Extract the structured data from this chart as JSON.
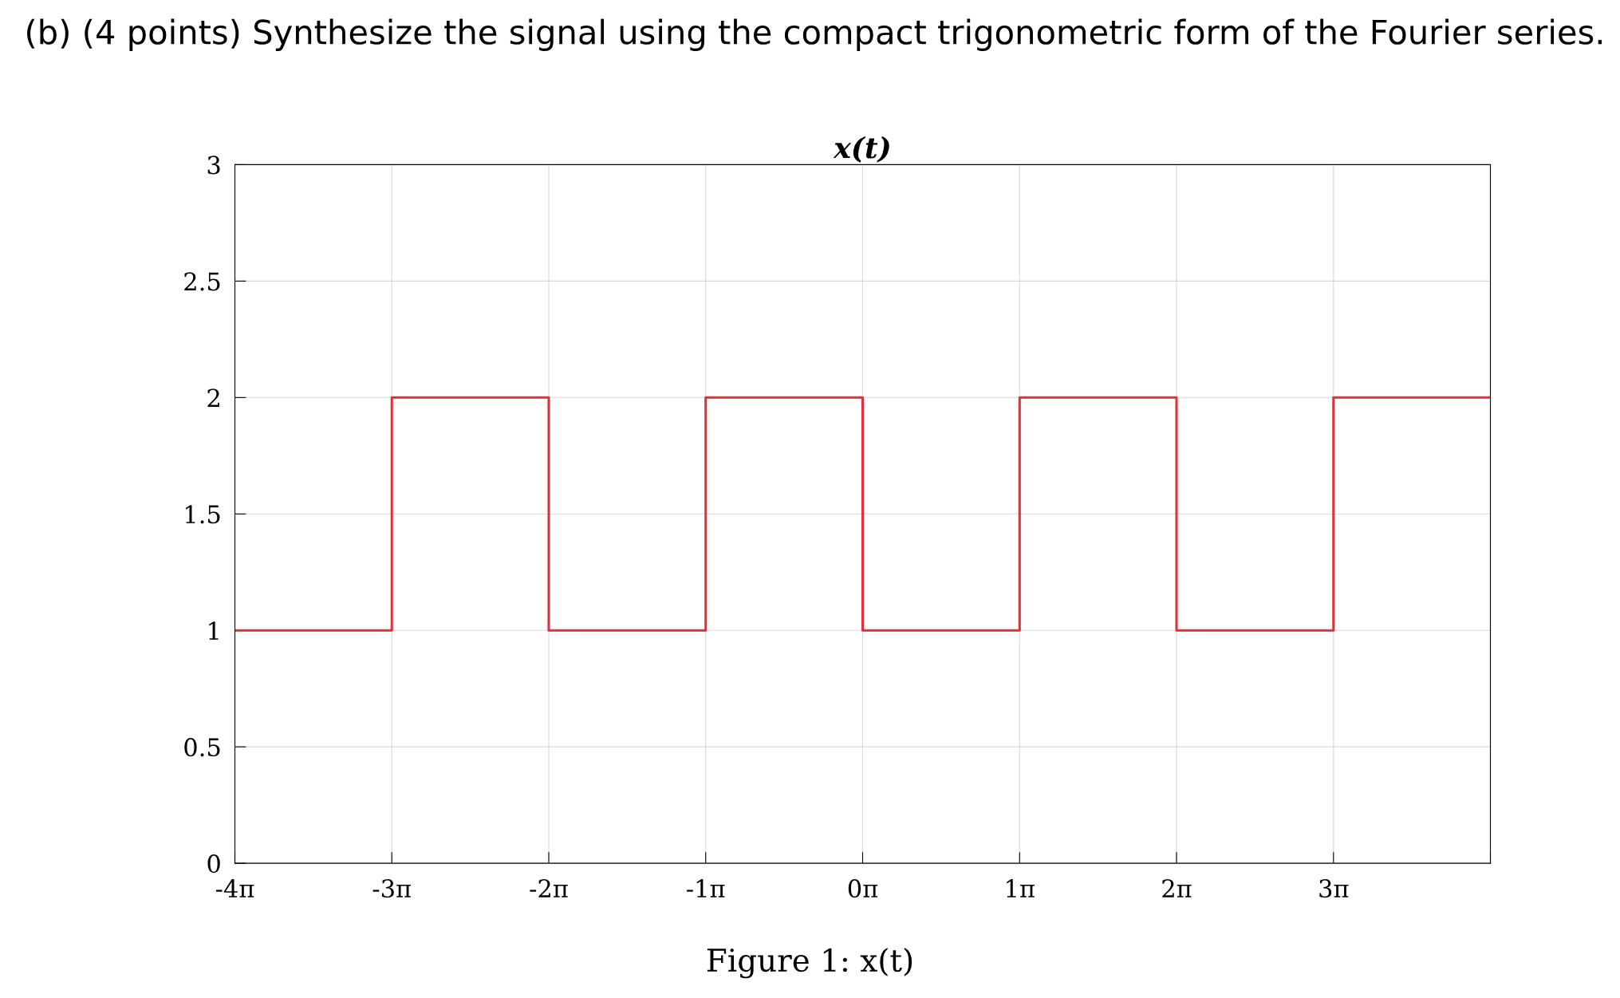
{
  "chart_data": {
    "type": "step",
    "title": "x(t)",
    "annotations": [
      "(b) (4 points) Synthesize the signal using the compact trigonometric form of the Fourier series.",
      "Figure 1: x(t)"
    ],
    "x": [
      -12.566,
      -9.425,
      -6.283,
      -3.142,
      0,
      3.142,
      6.283,
      9.425,
      12.566
    ],
    "series": [
      {
        "color": "#e0303a",
        "values": [
          1,
          2,
          1,
          2,
          1,
          2,
          1,
          2,
          2
        ]
      }
    ],
    "xlim": [
      -12.566,
      12.566
    ],
    "xticks": [
      {
        "value": -12.566,
        "label": "-4π"
      },
      {
        "value": -9.425,
        "label": "-3π"
      },
      {
        "value": -6.283,
        "label": "-2π"
      },
      {
        "value": -3.142,
        "label": "-1π"
      },
      {
        "value": 0,
        "label": "0π"
      },
      {
        "value": 3.142,
        "label": "1π"
      },
      {
        "value": 6.283,
        "label": "2π"
      },
      {
        "value": 9.425,
        "label": "3π"
      },
      {
        "value": 12.566,
        "label": null
      }
    ],
    "ylim": [
      0,
      3
    ],
    "yticks": [
      0,
      0.5,
      1,
      1.5,
      2,
      2.5,
      3
    ],
    "grid": true,
    "legend": false
  }
}
